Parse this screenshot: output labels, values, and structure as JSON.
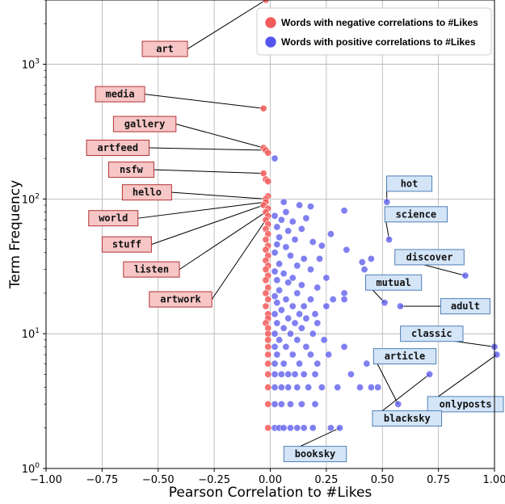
{
  "chart_data": {
    "type": "scatter",
    "xlabel": "Pearson Correlation to #Likes",
    "ylabel": "Term Frequency",
    "xlim": [
      -1.0,
      1.0
    ],
    "ylim": [
      1,
      3000
    ],
    "yscale": "log",
    "grid": true,
    "legend_position": "top-right",
    "x_ticks": [
      "−1.00",
      "−0.75",
      "−0.50",
      "−0.25",
      "0.00",
      "0.25",
      "0.50",
      "0.75",
      "1.00"
    ],
    "y_ticks": [
      {
        "value": 1,
        "base": "10",
        "exp": "0"
      },
      {
        "value": 10,
        "base": "10",
        "exp": "1"
      },
      {
        "value": 100,
        "base": "10",
        "exp": "2"
      },
      {
        "value": 1000,
        "base": "10",
        "exp": "3"
      }
    ],
    "series": [
      {
        "name": "Words with negative correlations to #Likes",
        "color": "#f35a5a",
        "points": [
          [
            -0.02,
            3000
          ],
          [
            -0.03,
            470
          ],
          [
            -0.03,
            240
          ],
          [
            -0.02,
            230
          ],
          [
            -0.01,
            220
          ],
          [
            -0.03,
            155
          ],
          [
            -0.02,
            140
          ],
          [
            -0.01,
            135
          ],
          [
            -0.01,
            105
          ],
          [
            -0.02,
            100
          ],
          [
            -0.02,
            95
          ],
          [
            -0.03,
            90
          ],
          [
            -0.01,
            85
          ],
          [
            -0.02,
            80
          ],
          [
            -0.01,
            75
          ],
          [
            -0.02,
            70
          ],
          [
            -0.01,
            65
          ],
          [
            -0.02,
            60
          ],
          [
            -0.01,
            55
          ],
          [
            -0.02,
            50
          ],
          [
            -0.01,
            45
          ],
          [
            -0.02,
            42
          ],
          [
            -0.01,
            38
          ],
          [
            -0.02,
            35
          ],
          [
            -0.01,
            32
          ],
          [
            -0.02,
            30
          ],
          [
            -0.01,
            27
          ],
          [
            -0.02,
            25
          ],
          [
            -0.01,
            22
          ],
          [
            -0.02,
            20
          ],
          [
            -0.01,
            18
          ],
          [
            -0.02,
            16
          ],
          [
            -0.01,
            14
          ],
          [
            -0.01,
            13
          ],
          [
            -0.02,
            12
          ],
          [
            -0.01,
            11
          ],
          [
            -0.01,
            10
          ],
          [
            -0.01,
            9
          ],
          [
            -0.01,
            8
          ],
          [
            -0.01,
            7
          ],
          [
            -0.01,
            6
          ],
          [
            -0.01,
            5
          ],
          [
            -0.01,
            4
          ],
          [
            -0.01,
            3
          ],
          [
            -0.01,
            2
          ]
        ]
      },
      {
        "name": "Words with positive correlations to #Likes",
        "color": "#5555ee",
        "points": [
          [
            0.02,
            200
          ],
          [
            0.52,
            95
          ],
          [
            0.53,
            50
          ],
          [
            0.87,
            27
          ],
          [
            0.51,
            17
          ],
          [
            0.58,
            16
          ],
          [
            1.0,
            8
          ],
          [
            1.01,
            7
          ],
          [
            0.71,
            5
          ],
          [
            0.57,
            3
          ],
          [
            0.06,
            95
          ],
          [
            0.07,
            80
          ],
          [
            0.13,
            90
          ],
          [
            0.18,
            88
          ],
          [
            0.33,
            82
          ],
          [
            0.02,
            75
          ],
          [
            0.05,
            70
          ],
          [
            0.1,
            68
          ],
          [
            0.16,
            72
          ],
          [
            0.03,
            62
          ],
          [
            0.08,
            58
          ],
          [
            0.14,
            60
          ],
          [
            0.27,
            55
          ],
          [
            0.04,
            52
          ],
          [
            0.11,
            50
          ],
          [
            0.19,
            48
          ],
          [
            0.03,
            46
          ],
          [
            0.07,
            44
          ],
          [
            0.23,
            45
          ],
          [
            0.34,
            42
          ],
          [
            0.02,
            40
          ],
          [
            0.09,
            38
          ],
          [
            0.15,
            36
          ],
          [
            0.22,
            36
          ],
          [
            0.41,
            34
          ],
          [
            0.45,
            36
          ],
          [
            0.04,
            33
          ],
          [
            0.12,
            32
          ],
          [
            0.18,
            30
          ],
          [
            0.42,
            30
          ],
          [
            0.02,
            29
          ],
          [
            0.06,
            28
          ],
          [
            0.1,
            26
          ],
          [
            0.25,
            26
          ],
          [
            0.03,
            25
          ],
          [
            0.08,
            24
          ],
          [
            0.14,
            23
          ],
          [
            0.21,
            22
          ],
          [
            0.04,
            21
          ],
          [
            0.12,
            20
          ],
          [
            0.33,
            20
          ],
          [
            0.02,
            19
          ],
          [
            0.07,
            18
          ],
          [
            0.18,
            18
          ],
          [
            0.28,
            18
          ],
          [
            0.33,
            18
          ],
          [
            0.03,
            17
          ],
          [
            0.1,
            16
          ],
          [
            0.15,
            16
          ],
          [
            0.25,
            16
          ],
          [
            0.05,
            15
          ],
          [
            0.13,
            14
          ],
          [
            0.02,
            14
          ],
          [
            0.2,
            14
          ],
          [
            0.08,
            13
          ],
          [
            0.16,
            13
          ],
          [
            0.03,
            12
          ],
          [
            0.11,
            12
          ],
          [
            0.21,
            12
          ],
          [
            0.06,
            11
          ],
          [
            0.14,
            11
          ],
          [
            0.02,
            10
          ],
          [
            0.09,
            10
          ],
          [
            0.19,
            10
          ],
          [
            0.04,
            9
          ],
          [
            0.12,
            9
          ],
          [
            0.24,
            9
          ],
          [
            0.02,
            8
          ],
          [
            0.07,
            8
          ],
          [
            0.16,
            8
          ],
          [
            0.33,
            8
          ],
          [
            0.03,
            7
          ],
          [
            0.1,
            7
          ],
          [
            0.18,
            7
          ],
          [
            0.26,
            7
          ],
          [
            0.02,
            6
          ],
          [
            0.06,
            6
          ],
          [
            0.13,
            6
          ],
          [
            0.21,
            6
          ],
          [
            0.43,
            6
          ],
          [
            0.02,
            5
          ],
          [
            0.05,
            5
          ],
          [
            0.08,
            5
          ],
          [
            0.11,
            5
          ],
          [
            0.15,
            5
          ],
          [
            0.2,
            5
          ],
          [
            0.36,
            5
          ],
          [
            0.02,
            4
          ],
          [
            0.05,
            4
          ],
          [
            0.08,
            4
          ],
          [
            0.12,
            4
          ],
          [
            0.17,
            4
          ],
          [
            0.23,
            4
          ],
          [
            0.3,
            4
          ],
          [
            0.4,
            4
          ],
          [
            0.45,
            4
          ],
          [
            0.48,
            4
          ],
          [
            0.02,
            3
          ],
          [
            0.05,
            3
          ],
          [
            0.09,
            3
          ],
          [
            0.14,
            3
          ],
          [
            0.2,
            3
          ],
          [
            0.02,
            2
          ],
          [
            0.04,
            2
          ],
          [
            0.06,
            2
          ],
          [
            0.09,
            2
          ],
          [
            0.12,
            2
          ],
          [
            0.15,
            2
          ],
          [
            0.19,
            2
          ],
          [
            0.27,
            2
          ],
          [
            0.31,
            2
          ]
        ]
      }
    ],
    "annotations": [
      {
        "text": "art",
        "x": -0.02,
        "y": 3000,
        "series": "negative",
        "box_x": -0.47,
        "box_y": 1300
      },
      {
        "text": "media",
        "x": -0.03,
        "y": 470,
        "series": "negative",
        "box_x": -0.67,
        "box_y": 600
      },
      {
        "text": "gallery",
        "x": -0.03,
        "y": 240,
        "series": "negative",
        "box_x": -0.56,
        "box_y": 360
      },
      {
        "text": "artfeed",
        "x": -0.02,
        "y": 230,
        "series": "negative",
        "box_x": -0.68,
        "box_y": 240
      },
      {
        "text": "nsfw",
        "x": -0.03,
        "y": 155,
        "series": "negative",
        "box_x": -0.62,
        "box_y": 165
      },
      {
        "text": "hello",
        "x": -0.02,
        "y": 100,
        "series": "negative",
        "box_x": -0.55,
        "box_y": 112
      },
      {
        "text": "world",
        "x": -0.02,
        "y": 95,
        "series": "negative",
        "box_x": -0.7,
        "box_y": 72
      },
      {
        "text": "stuff",
        "x": -0.03,
        "y": 90,
        "series": "negative",
        "box_x": -0.64,
        "box_y": 46
      },
      {
        "text": "listen",
        "x": -0.02,
        "y": 80,
        "series": "negative",
        "box_x": -0.53,
        "box_y": 30
      },
      {
        "text": "artwork",
        "x": -0.02,
        "y": 70,
        "series": "negative",
        "box_x": -0.4,
        "box_y": 18
      },
      {
        "text": "hot",
        "x": 0.52,
        "y": 95,
        "series": "positive",
        "box_x": 0.62,
        "box_y": 130
      },
      {
        "text": "science",
        "x": 0.53,
        "y": 50,
        "series": "positive",
        "box_x": 0.65,
        "box_y": 77
      },
      {
        "text": "discover",
        "x": 0.87,
        "y": 27,
        "series": "positive",
        "box_x": 0.71,
        "box_y": 37
      },
      {
        "text": "mutual",
        "x": 0.51,
        "y": 17,
        "series": "positive",
        "box_x": 0.55,
        "box_y": 24
      },
      {
        "text": "adult",
        "x": 0.58,
        "y": 16,
        "series": "positive",
        "box_x": 0.87,
        "box_y": 16
      },
      {
        "text": "classic",
        "x": 1.0,
        "y": 8,
        "series": "positive",
        "box_x": 0.72,
        "box_y": 10
      },
      {
        "text": "article",
        "x": 0.57,
        "y": 3,
        "series": "positive",
        "box_x": 0.6,
        "box_y": 6.8
      },
      {
        "text": "onlyposts",
        "x": 1.01,
        "y": 7,
        "series": "positive",
        "box_x": 0.9,
        "box_y": 3.0
      },
      {
        "text": "blacksky",
        "x": 0.71,
        "y": 5,
        "series": "positive",
        "box_x": 0.61,
        "box_y": 2.35
      },
      {
        "text": "booksky",
        "x": 0.31,
        "y": 2,
        "series": "positive",
        "box_x": 0.2,
        "box_y": 1.28
      }
    ]
  }
}
